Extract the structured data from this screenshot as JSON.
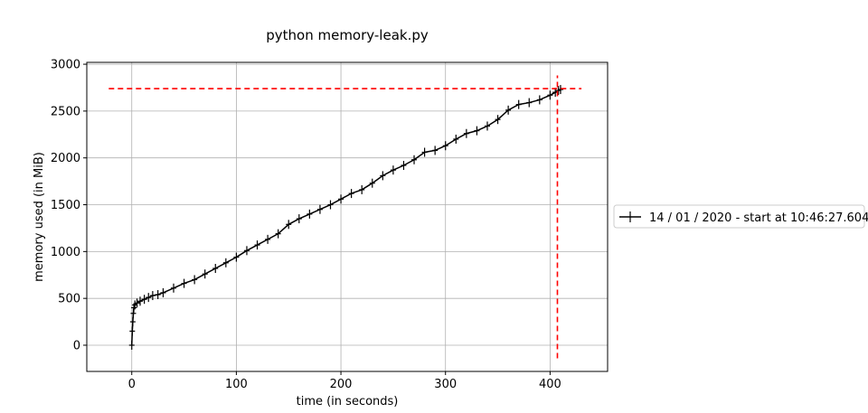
{
  "chart_data": {
    "type": "line",
    "title": "python memory-leak.py",
    "xlabel": "time (in seconds)",
    "ylabel": "memory used (in MiB)",
    "xlim": [
      -43,
      455
    ],
    "ylim": [
      -280,
      3020
    ],
    "xticks": [
      0,
      100,
      200,
      300,
      400
    ],
    "yticks": [
      0,
      500,
      1000,
      1500,
      2000,
      2500,
      3000
    ],
    "grid": true,
    "legend_position": "right-outside",
    "series": [
      {
        "name": "14 / 01 / 2020 - start at 10:46:27.604",
        "color": "#000000",
        "marker": "plus",
        "x": [
          0,
          0.5,
          1,
          1.5,
          2,
          3,
          5,
          8,
          12,
          16,
          20,
          25,
          30,
          40,
          50,
          60,
          70,
          80,
          90,
          100,
          110,
          120,
          130,
          140,
          150,
          160,
          170,
          180,
          190,
          200,
          210,
          220,
          230,
          240,
          250,
          260,
          270,
          280,
          290,
          300,
          310,
          320,
          330,
          340,
          350,
          360,
          370,
          380,
          390,
          400,
          405,
          408,
          410
        ],
        "y": [
          0,
          150,
          250,
          340,
          400,
          430,
          450,
          470,
          490,
          510,
          530,
          540,
          560,
          610,
          660,
          700,
          760,
          820,
          880,
          940,
          1010,
          1070,
          1130,
          1190,
          1290,
          1350,
          1400,
          1450,
          1500,
          1560,
          1620,
          1660,
          1730,
          1810,
          1870,
          1920,
          1980,
          2060,
          2080,
          2130,
          2200,
          2260,
          2290,
          2340,
          2410,
          2510,
          2570,
          2590,
          2620,
          2670,
          2700,
          2720,
          2730
        ]
      }
    ],
    "annotations": {
      "max_memory_hline": {
        "y": 2740,
        "x_from": -22,
        "x_to": 430,
        "color": "#ff0000",
        "style": "dashed"
      },
      "max_time_vline": {
        "x": 407,
        "y_from": -140,
        "y_to": 2880,
        "color": "#ff0000",
        "style": "dashed"
      }
    }
  }
}
